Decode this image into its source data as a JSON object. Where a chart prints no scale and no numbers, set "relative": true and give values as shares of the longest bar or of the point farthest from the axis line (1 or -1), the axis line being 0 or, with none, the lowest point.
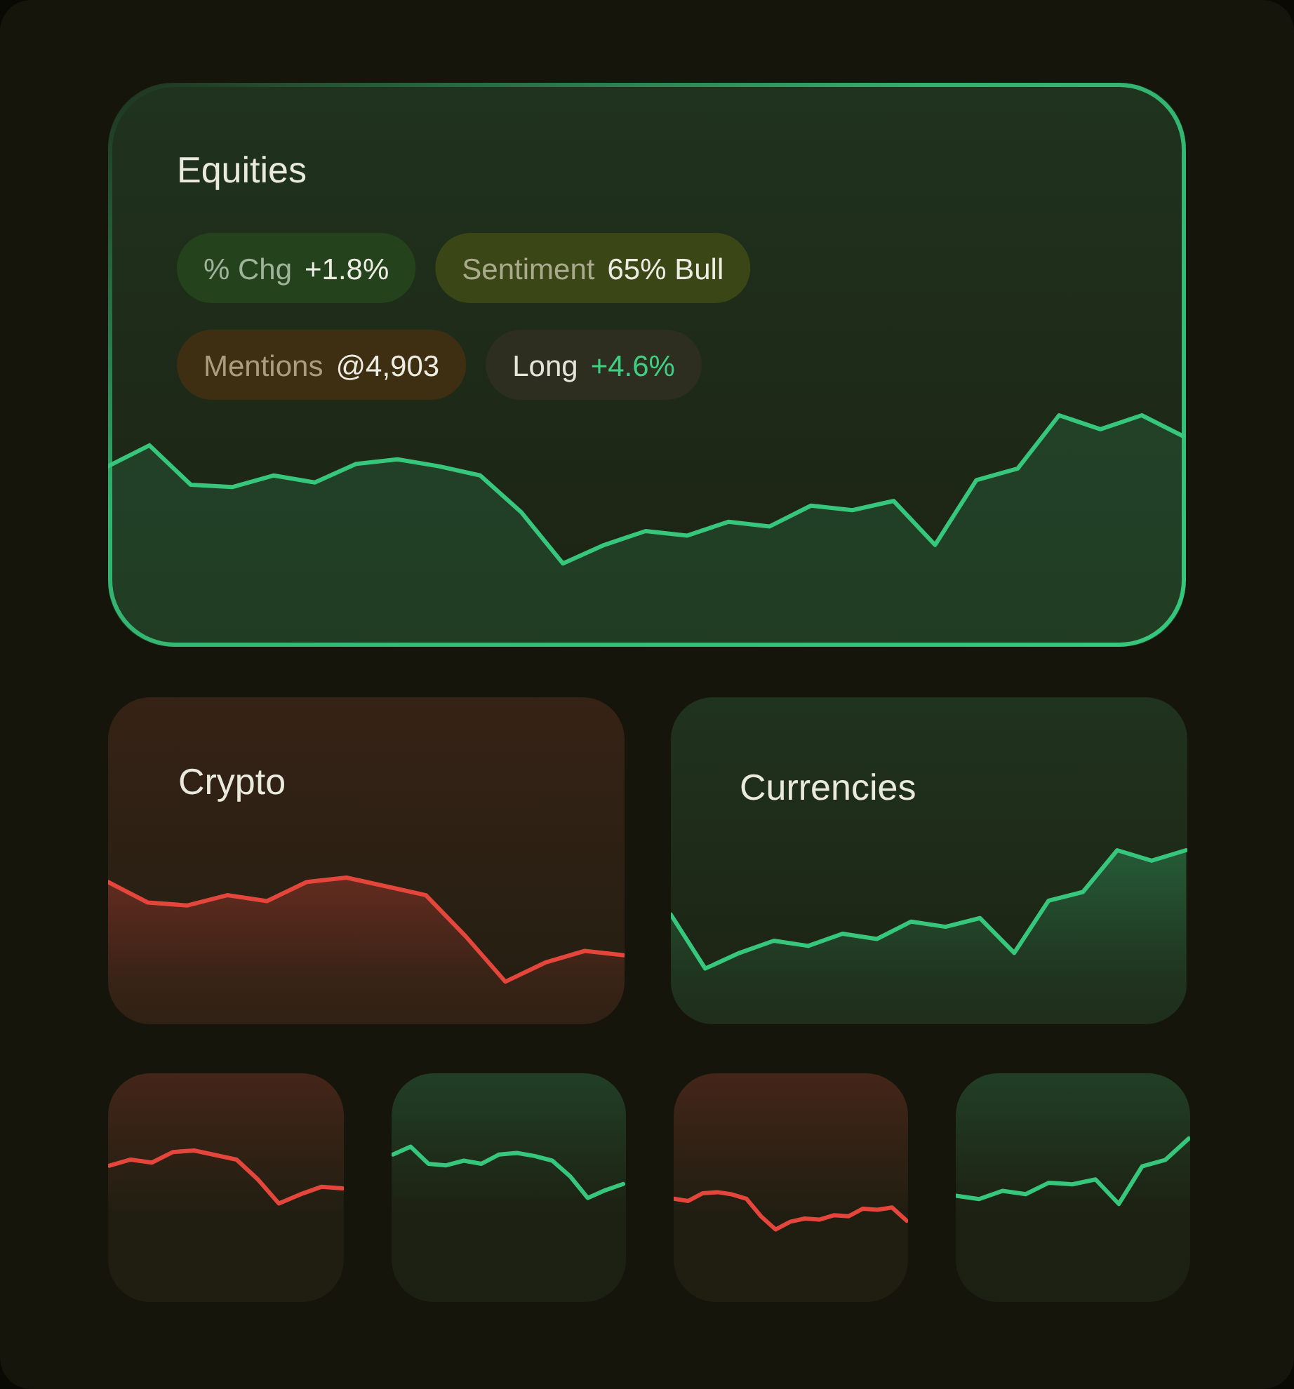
{
  "chart_data": [
    {
      "type": "area",
      "title": "Equities",
      "relative": true,
      "color": "#36c77c",
      "categories": [
        null,
        null,
        null,
        null,
        null,
        null,
        null,
        null,
        null,
        null,
        null,
        null,
        null,
        null,
        null,
        null,
        null,
        null,
        null,
        null,
        null,
        null,
        null,
        null,
        null,
        null,
        null
      ],
      "values": [
        0.78,
        0.87,
        0.7,
        0.69,
        0.74,
        0.71,
        0.79,
        0.81,
        0.78,
        0.74,
        0.58,
        0.36,
        0.44,
        0.5,
        0.48,
        0.54,
        0.52,
        0.61,
        0.59,
        0.63,
        0.44,
        0.72,
        0.77,
        1,
        0.94,
        1,
        0.91
      ],
      "annotations": [
        "% Chg",
        "+1.8%",
        "Sentiment",
        "65% Bull",
        "Mentions",
        "@4,903",
        "Long",
        "+4.6%"
      ]
    },
    {
      "type": "area",
      "title": "Crypto",
      "relative": true,
      "color": "#e5463b",
      "categories": [
        null,
        null,
        null,
        null,
        null,
        null,
        null,
        null,
        null,
        null,
        null,
        null,
        null,
        null
      ],
      "values": [
        0.97,
        0.83,
        0.81,
        0.88,
        0.84,
        0.97,
        1,
        0.94,
        0.88,
        0.6,
        0.29,
        0.42,
        0.5,
        0.47
      ]
    },
    {
      "type": "area",
      "title": "Currencies",
      "relative": true,
      "color": "#36c77c",
      "categories": [
        null,
        null,
        null,
        null,
        null,
        null,
        null,
        null,
        null,
        null,
        null,
        null,
        null,
        null,
        null,
        null
      ],
      "values": [
        0.63,
        0.32,
        0.41,
        0.48,
        0.45,
        0.52,
        0.49,
        0.59,
        0.56,
        0.61,
        0.41,
        0.71,
        0.76,
        1,
        0.94,
        1
      ]
    },
    {
      "type": "line",
      "relative": true,
      "color": "#e5463b",
      "categories": [
        null,
        null,
        null,
        null,
        null,
        null,
        null,
        null,
        null,
        null,
        null,
        null
      ],
      "values": [
        0.9,
        0.94,
        0.92,
        0.99,
        1,
        0.97,
        0.94,
        0.81,
        0.65,
        0.71,
        0.76,
        0.75
      ]
    },
    {
      "type": "line",
      "relative": true,
      "color": "#36c77c",
      "categories": [
        null,
        null,
        null,
        null,
        null,
        null,
        null,
        null,
        null,
        null,
        null,
        null,
        null,
        null
      ],
      "values": [
        0.95,
        1,
        0.89,
        0.88,
        0.91,
        0.89,
        0.95,
        0.96,
        0.94,
        0.91,
        0.81,
        0.67,
        0.72,
        0.76
      ]
    },
    {
      "type": "line",
      "relative": true,
      "color": "#e5463b",
      "categories": [
        null,
        null,
        null,
        null,
        null,
        null,
        null,
        null,
        null,
        null,
        null,
        null,
        null,
        null,
        null,
        null,
        null
      ],
      "values": [
        0.94,
        0.92,
        0.99,
        1,
        0.98,
        0.94,
        0.78,
        0.66,
        0.73,
        0.76,
        0.75,
        0.79,
        0.78,
        0.85,
        0.84,
        0.86,
        0.74
      ]
    },
    {
      "type": "line",
      "relative": true,
      "color": "#36c77c",
      "categories": [
        null,
        null,
        null,
        null,
        null,
        null,
        null,
        null,
        null,
        null,
        null
      ],
      "values": [
        0.65,
        0.63,
        0.68,
        0.66,
        0.73,
        0.72,
        0.75,
        0.6,
        0.83,
        0.87,
        1
      ]
    }
  ]
}
